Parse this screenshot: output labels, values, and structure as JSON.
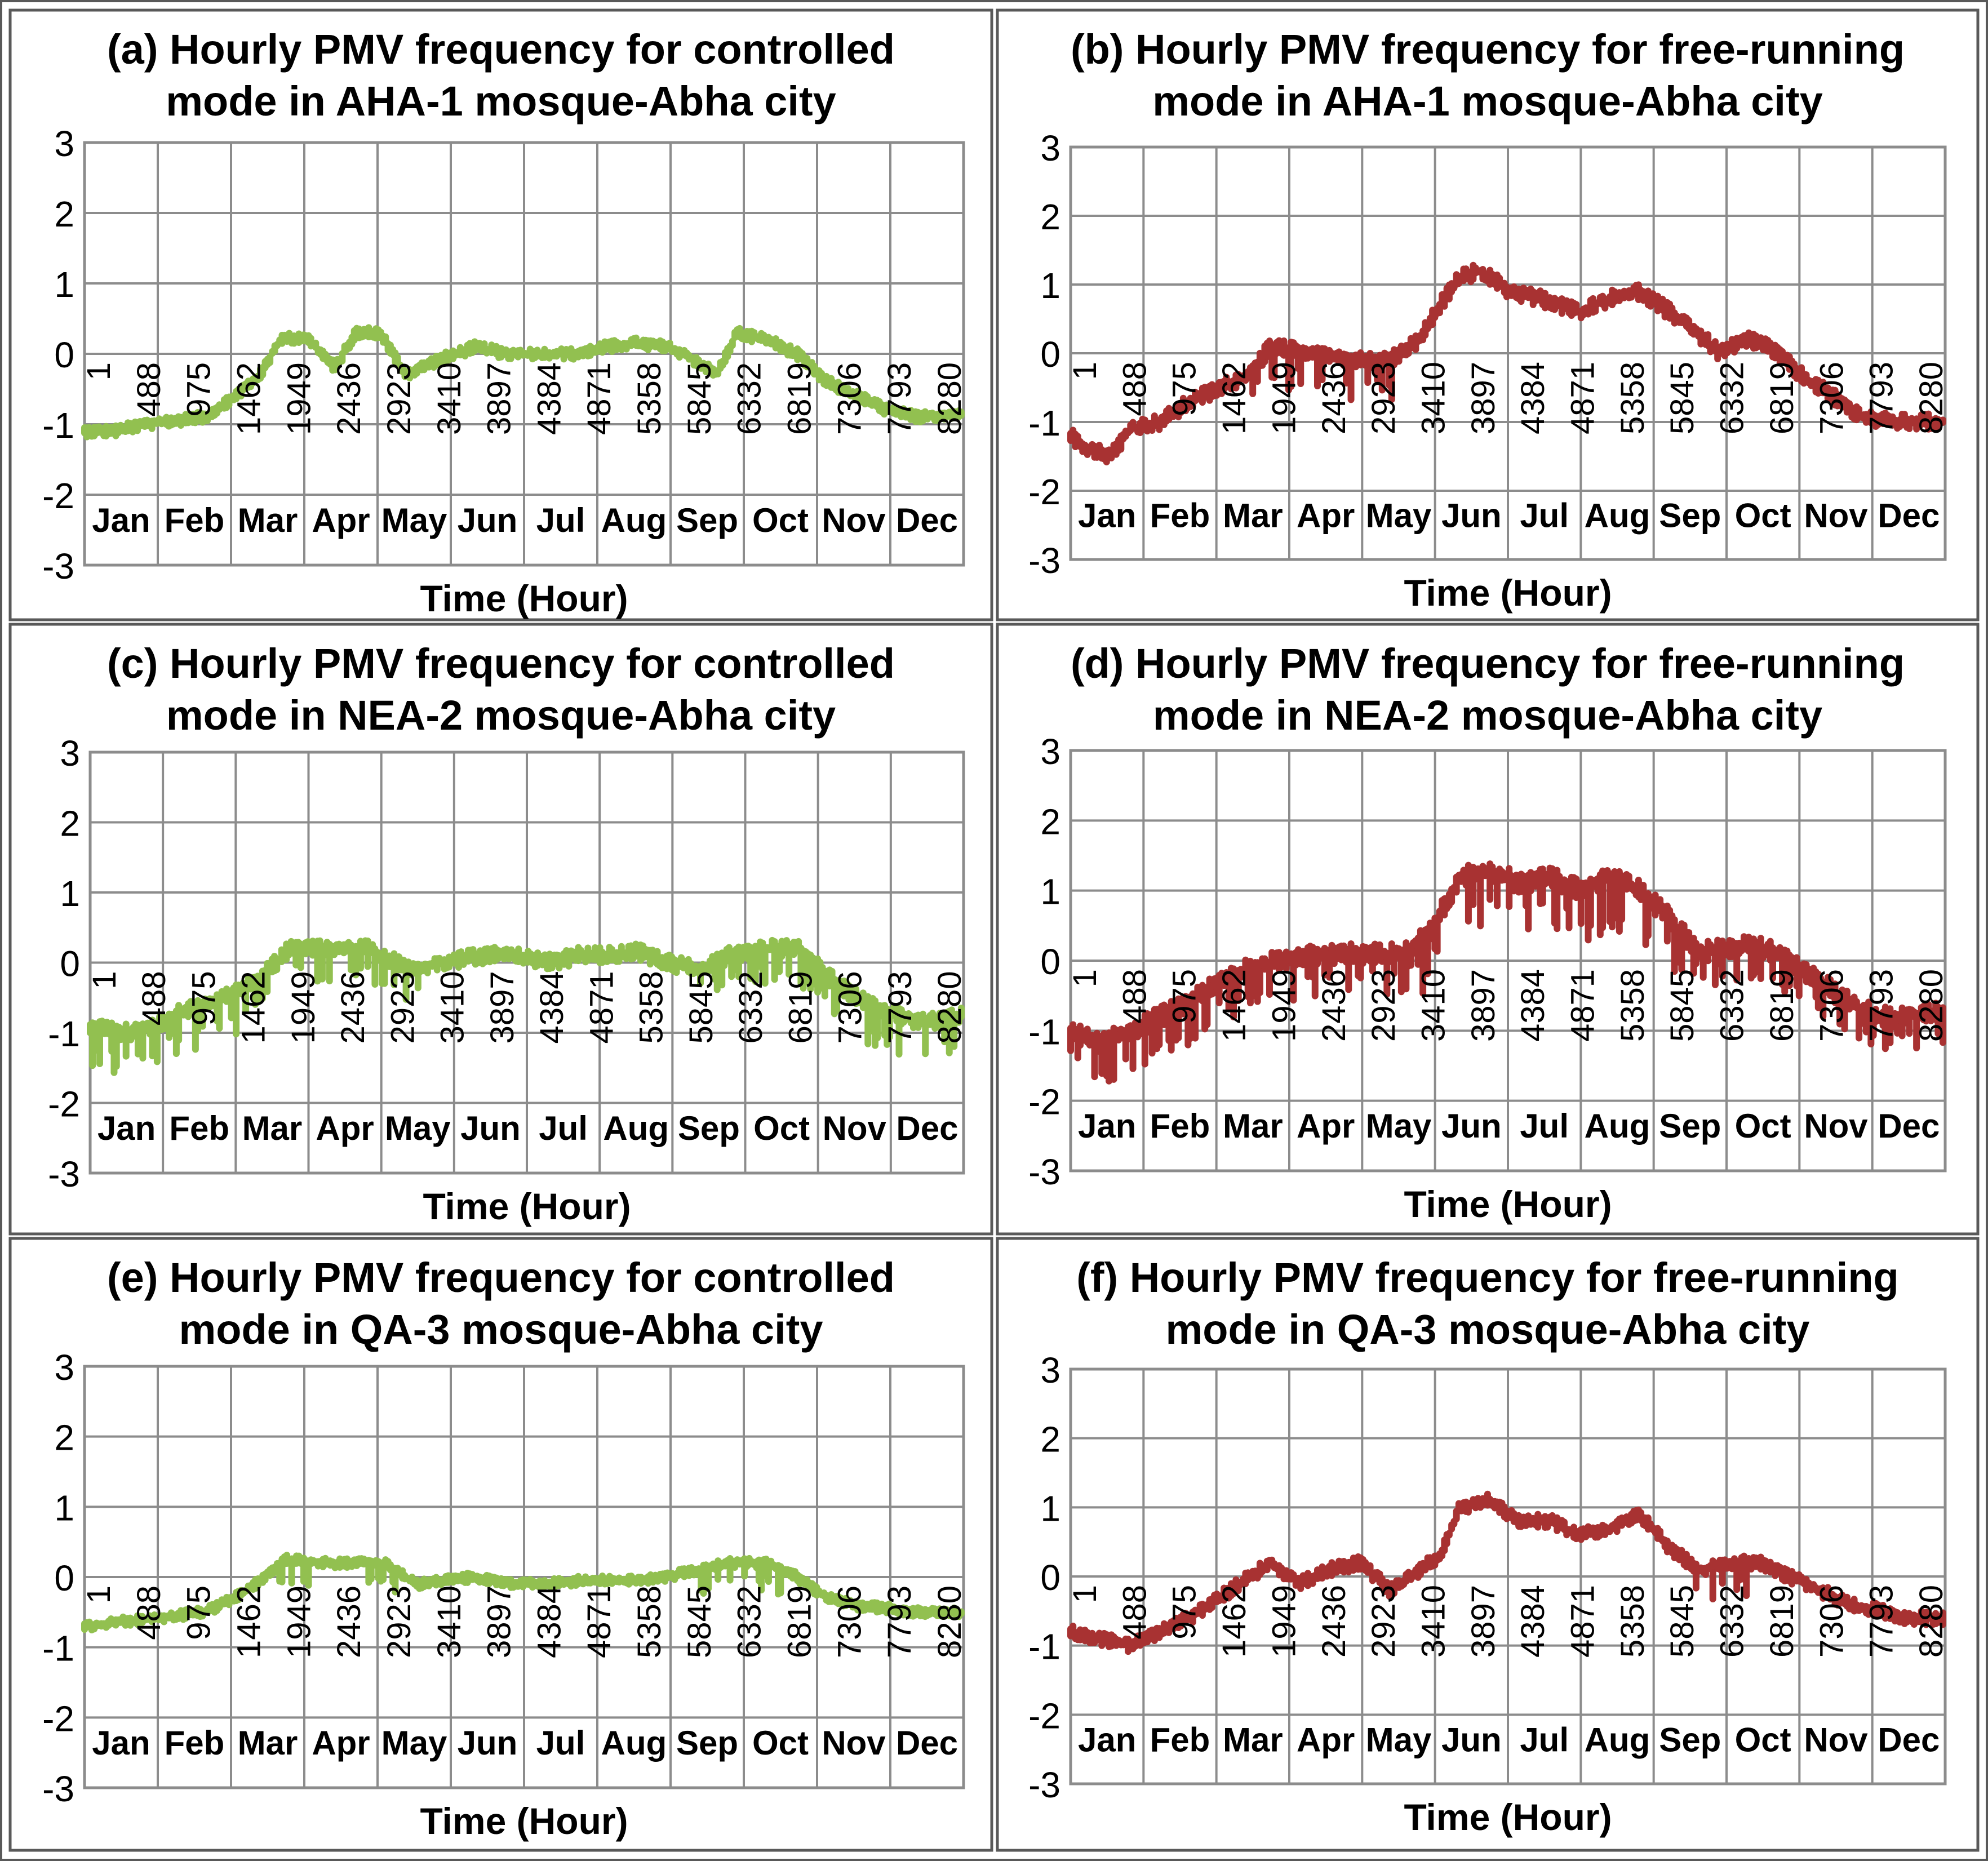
{
  "figure": {
    "colors": {
      "controlled": "#92c050",
      "free_running": "#a83232",
      "grid": "#8c8c8c",
      "frame": "#595959",
      "text": "#000000"
    }
  },
  "chart_data": [
    {
      "type": "scatter",
      "title": "(a) Hourly PMV frequency for controlled mode in AHA-1 mosque-Abha city",
      "title_lines": [
        "(a) Hourly PMV frequency for controlled",
        "mode in AHA-1 mosque-Abha city"
      ],
      "xlabel": "Time (Hour)",
      "ylabel": "",
      "ylim": [
        -3,
        3
      ],
      "xlim": [
        1,
        8760
      ],
      "yticks": [
        "3",
        "2",
        "1",
        "0",
        "-1",
        "-2",
        "-3"
      ],
      "xticks": [
        "1",
        "488",
        "975",
        "1462",
        "1949",
        "2436",
        "2923",
        "3410",
        "3897",
        "4384",
        "4871",
        "5358",
        "5845",
        "6332",
        "6819",
        "7306",
        "7793",
        "8280"
      ],
      "months": [
        "Jan",
        "Feb",
        "Mar",
        "Apr",
        "May",
        "Jun",
        "Jul",
        "Aug",
        "Sep",
        "Oct",
        "Nov",
        "Dec"
      ],
      "grid": true,
      "legend": "none",
      "series": [
        {
          "color": "#92c050",
          "spread": 0.08,
          "dips": [],
          "x": [
            1,
            300,
            600,
            900,
            1200,
            1500,
            1750,
            1950,
            2200,
            2500,
            2700,
            2950,
            3200,
            3500,
            3900,
            4200,
            4500,
            4900,
            5200,
            5500,
            5800,
            6100,
            6300,
            6500,
            6800,
            7100,
            7400,
            7700,
            8000,
            8300,
            8760
          ],
          "y": [
            -1.1,
            -1.1,
            -1.0,
            -0.95,
            -0.9,
            -0.6,
            -0.3,
            0.2,
            0.25,
            -0.2,
            0.3,
            0.3,
            -0.3,
            -0.1,
            0.1,
            0.0,
            0.0,
            0.0,
            0.1,
            0.15,
            0.1,
            -0.1,
            -0.3,
            0.3,
            0.2,
            0.0,
            -0.4,
            -0.6,
            -0.8,
            -0.9,
            -0.85
          ]
        }
      ]
    },
    {
      "type": "scatter",
      "title": "(b) Hourly PMV frequency for free-running mode in AHA-1 mosque-Abha city",
      "title_lines": [
        "(b) Hourly PMV frequency for free-running",
        "mode in AHA-1 mosque-Abha city"
      ],
      "xlabel": "Time (Hour)",
      "ylabel": "",
      "ylim": [
        -3,
        3
      ],
      "xlim": [
        1,
        8760
      ],
      "yticks": [
        "3",
        "2",
        "1",
        "0",
        "-1",
        "-2",
        "-3"
      ],
      "xticks": [
        "1",
        "488",
        "975",
        "1462",
        "1949",
        "2436",
        "2923",
        "3410",
        "3897",
        "4384",
        "4871",
        "5358",
        "5845",
        "6332",
        "6819",
        "7306",
        "7793",
        "8280"
      ],
      "months": [
        "Jan",
        "Feb",
        "Mar",
        "Apr",
        "May",
        "Jun",
        "Jul",
        "Aug",
        "Sep",
        "Oct",
        "Nov",
        "Dec"
      ],
      "grid": true,
      "legend": "none",
      "series": [
        {
          "color": "#a83232",
          "spread": 0.12,
          "dips": [
            {
              "from": 1800,
              "to": 3300,
              "depth": 0.6
            }
          ],
          "x": [
            1,
            200,
            400,
            600,
            900,
            1200,
            1500,
            1800,
            2000,
            2400,
            2800,
            3200,
            3500,
            3700,
            3900,
            4100,
            4400,
            4700,
            4900,
            5100,
            5400,
            5700,
            5900,
            6200,
            6500,
            6800,
            7000,
            7300,
            7600,
            7900,
            8200,
            8500,
            8760
          ],
          "y": [
            -1.2,
            -1.4,
            -1.5,
            -1.1,
            -1.0,
            -0.7,
            -0.5,
            -0.3,
            0.1,
            0.0,
            -0.1,
            -0.1,
            0.2,
            0.7,
            1.1,
            1.2,
            0.9,
            0.8,
            0.7,
            0.6,
            0.8,
            0.9,
            0.7,
            0.4,
            0.0,
            0.2,
            0.1,
            -0.3,
            -0.6,
            -0.9,
            -1.0,
            -1.0,
            -1.0
          ]
        }
      ]
    },
    {
      "type": "scatter",
      "title": "(c) Hourly PMV frequency for controlled mode in NEA-2 mosque-Abha city",
      "title_lines": [
        "(c) Hourly PMV frequency for controlled",
        "mode in NEA-2 mosque-Abha city"
      ],
      "xlabel": "Time (Hour)",
      "ylabel": "",
      "ylim": [
        -3,
        3
      ],
      "xlim": [
        1,
        8760
      ],
      "yticks": [
        "3",
        "2",
        "1",
        "0",
        "-1",
        "-2",
        "-3"
      ],
      "xticks": [
        "1",
        "488",
        "975",
        "1462",
        "1949",
        "2436",
        "2923",
        "3410",
        "3897",
        "4384",
        "4871",
        "5358",
        "5845",
        "6332",
        "6819",
        "7306",
        "7793",
        "8280"
      ],
      "months": [
        "Jan",
        "Feb",
        "Mar",
        "Apr",
        "May",
        "Jun",
        "Jul",
        "Aug",
        "Sep",
        "Oct",
        "Nov",
        "Dec"
      ],
      "grid": true,
      "legend": "none",
      "series": [
        {
          "color": "#92c050",
          "spread": 0.12,
          "dips": [
            {
              "from": 1,
              "to": 1500,
              "depth": 0.6
            },
            {
              "from": 1500,
              "to": 3300,
              "depth": 0.5
            },
            {
              "from": 6000,
              "to": 7500,
              "depth": 0.5
            },
            {
              "from": 7800,
              "to": 8760,
              "depth": 0.6
            }
          ],
          "x": [
            1,
            300,
            600,
            900,
            1200,
            1500,
            1800,
            2000,
            2400,
            2800,
            3200,
            3500,
            3900,
            4200,
            4600,
            4900,
            5200,
            5500,
            5800,
            6100,
            6400,
            6800,
            7100,
            7400,
            7700,
            8000,
            8300,
            8600,
            8760
          ],
          "y": [
            -0.9,
            -1.0,
            -0.95,
            -0.7,
            -0.6,
            -0.4,
            -0.1,
            0.2,
            0.2,
            0.2,
            -0.1,
            0.0,
            0.1,
            0.1,
            0.0,
            0.1,
            0.1,
            0.15,
            0.0,
            -0.1,
            0.1,
            0.2,
            0.2,
            -0.2,
            -0.5,
            -0.7,
            -0.85,
            -0.8,
            -0.75
          ]
        }
      ]
    },
    {
      "type": "scatter",
      "title": "(d) Hourly PMV frequency for free-running mode in NEA-2 mosque-Abha city",
      "title_lines": [
        "(d) Hourly PMV frequency for free-running",
        "mode in NEA-2 mosque-Abha city"
      ],
      "xlabel": "Time (Hour)",
      "ylabel": "",
      "ylim": [
        -3,
        3
      ],
      "xlim": [
        1,
        8760
      ],
      "yticks": [
        "3",
        "2",
        "1",
        "0",
        "-1",
        "-2",
        "-3"
      ],
      "xticks": [
        "1",
        "488",
        "975",
        "1462",
        "1949",
        "2436",
        "2923",
        "3410",
        "3897",
        "4384",
        "4871",
        "5358",
        "5845",
        "6332",
        "6819",
        "7306",
        "7793",
        "8280"
      ],
      "months": [
        "Jan",
        "Feb",
        "Mar",
        "Apr",
        "May",
        "Jun",
        "Jul",
        "Aug",
        "Sep",
        "Oct",
        "Nov",
        "Dec"
      ],
      "grid": true,
      "legend": "none",
      "series": [
        {
          "color": "#a83232",
          "spread": 0.15,
          "dips": [
            {
              "from": 1,
              "to": 3500,
              "depth": 0.6
            },
            {
              "from": 3500,
              "to": 6200,
              "depth": 0.8
            },
            {
              "from": 6200,
              "to": 8760,
              "depth": 0.5
            }
          ],
          "x": [
            1,
            300,
            600,
            900,
            1200,
            1500,
            1800,
            2100,
            2500,
            2900,
            3300,
            3600,
            3900,
            4200,
            4500,
            4800,
            5100,
            5400,
            5700,
            6000,
            6300,
            6600,
            6900,
            7200,
            7500,
            7800,
            8100,
            8400,
            8760
          ],
          "y": [
            -1.0,
            -1.2,
            -1.0,
            -0.8,
            -0.6,
            -0.3,
            -0.1,
            0.0,
            0.1,
            0.1,
            0.1,
            0.4,
            1.2,
            1.3,
            1.1,
            1.2,
            1.0,
            1.2,
            1.0,
            0.6,
            0.1,
            0.2,
            0.2,
            0.0,
            -0.3,
            -0.6,
            -0.8,
            -0.8,
            -0.7
          ]
        }
      ]
    },
    {
      "type": "scatter",
      "title": "(e) Hourly PMV frequency for controlled mode in QA-3 mosque-Abha city",
      "title_lines": [
        "(e) Hourly PMV frequency for controlled",
        "mode in QA-3 mosque-Abha city"
      ],
      "xlabel": "Time (Hour)",
      "ylabel": "",
      "ylim": [
        -3,
        3
      ],
      "xlim": [
        1,
        8760
      ],
      "yticks": [
        "3",
        "2",
        "1",
        "0",
        "-1",
        "-2",
        "-3"
      ],
      "xticks": [
        "1",
        "488",
        "975",
        "1462",
        "1949",
        "2436",
        "2923",
        "3410",
        "3897",
        "4384",
        "4871",
        "5358",
        "5845",
        "6332",
        "6819",
        "7306",
        "7793",
        "8280"
      ],
      "months": [
        "Jan",
        "Feb",
        "Mar",
        "Apr",
        "May",
        "Jun",
        "Jul",
        "Aug",
        "Sep",
        "Oct",
        "Nov",
        "Dec"
      ],
      "grid": true,
      "legend": "none",
      "series": [
        {
          "color": "#92c050",
          "spread": 0.07,
          "dips": [
            {
              "from": 1900,
              "to": 2300,
              "depth": 0.4
            },
            {
              "from": 2700,
              "to": 3100,
              "depth": 0.4
            },
            {
              "from": 6100,
              "to": 7000,
              "depth": 0.4
            }
          ],
          "x": [
            1,
            300,
            600,
            900,
            1200,
            1500,
            1800,
            2000,
            2400,
            2700,
            3000,
            3300,
            3600,
            3900,
            4200,
            4600,
            5000,
            5400,
            5800,
            6100,
            6400,
            6800,
            7100,
            7400,
            7700,
            8000,
            8300,
            8760
          ],
          "y": [
            -0.7,
            -0.65,
            -0.6,
            -0.55,
            -0.5,
            -0.3,
            0.0,
            0.25,
            0.2,
            0.2,
            0.2,
            -0.1,
            -0.05,
            0.0,
            -0.1,
            -0.1,
            -0.05,
            -0.05,
            0.0,
            0.1,
            0.2,
            0.2,
            0.0,
            -0.3,
            -0.4,
            -0.45,
            -0.5,
            -0.5
          ]
        }
      ]
    },
    {
      "type": "scatter",
      "title": "(f) Hourly PMV frequency for free-running mode in QA-3 mosque-Abha city",
      "title_lines": [
        "(f) Hourly PMV frequency for free-running",
        "mode in QA-3 mosque-Abha city"
      ],
      "xlabel": "Time (Hour)",
      "ylabel": "",
      "ylim": [
        -3,
        3
      ],
      "xlim": [
        1,
        8760
      ],
      "yticks": [
        "3",
        "2",
        "1",
        "0",
        "-1",
        "-2",
        "-3"
      ],
      "xticks": [
        "1",
        "488",
        "975",
        "1462",
        "1949",
        "2436",
        "2923",
        "3410",
        "3897",
        "4384",
        "4871",
        "5358",
        "5845",
        "6332",
        "6819",
        "7306",
        "7793",
        "8280"
      ],
      "months": [
        "Jan",
        "Feb",
        "Mar",
        "Apr",
        "May",
        "Jun",
        "Jul",
        "Aug",
        "Sep",
        "Oct",
        "Nov",
        "Dec"
      ],
      "grid": true,
      "legend": "none",
      "series": [
        {
          "color": "#a83232",
          "spread": 0.1,
          "dips": [
            {
              "from": 6200,
              "to": 7000,
              "depth": 0.5
            }
          ],
          "x": [
            1,
            300,
            600,
            900,
            1200,
            1500,
            1800,
            2000,
            2300,
            2600,
            2900,
            3200,
            3500,
            3700,
            3900,
            4200,
            4500,
            4800,
            5100,
            5400,
            5700,
            6000,
            6300,
            6600,
            6900,
            7200,
            7500,
            7800,
            8100,
            8400,
            8760
          ],
          "y": [
            -0.8,
            -0.9,
            -1.0,
            -0.8,
            -0.6,
            -0.3,
            0.0,
            0.2,
            -0.1,
            0.1,
            0.2,
            -0.2,
            0.1,
            0.3,
            1.0,
            1.1,
            0.8,
            0.8,
            0.6,
            0.7,
            0.9,
            0.4,
            0.1,
            0.2,
            0.2,
            0.0,
            -0.2,
            -0.4,
            -0.5,
            -0.6,
            -0.6
          ]
        }
      ]
    }
  ]
}
